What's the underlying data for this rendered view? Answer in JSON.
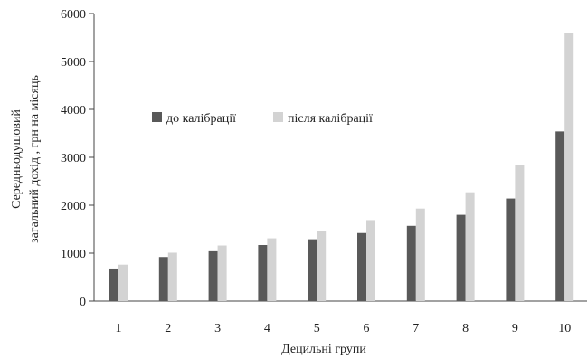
{
  "chart_data": {
    "type": "bar",
    "categories": [
      "1",
      "2",
      "3",
      "4",
      "5",
      "6",
      "7",
      "8",
      "9",
      "10"
    ],
    "series": [
      {
        "name": "до калібрації",
        "color": "#595959",
        "values": [
          680,
          920,
          1040,
          1170,
          1290,
          1420,
          1570,
          1800,
          2140,
          3540
        ]
      },
      {
        "name": "після калібрації",
        "color": "#d3d3d3",
        "values": [
          760,
          1010,
          1160,
          1310,
          1460,
          1690,
          1930,
          2270,
          2840,
          5600
        ]
      }
    ],
    "xlabel": "Децильні групи",
    "ylabel_line1": "Середньодушовий",
    "ylabel_line2": "загальний дохід , грн на місяць",
    "ylim": [
      0,
      6000
    ],
    "yticks": [
      0,
      1000,
      2000,
      3000,
      4000,
      5000,
      6000
    ],
    "grid": false,
    "legend_position": "top-left"
  }
}
